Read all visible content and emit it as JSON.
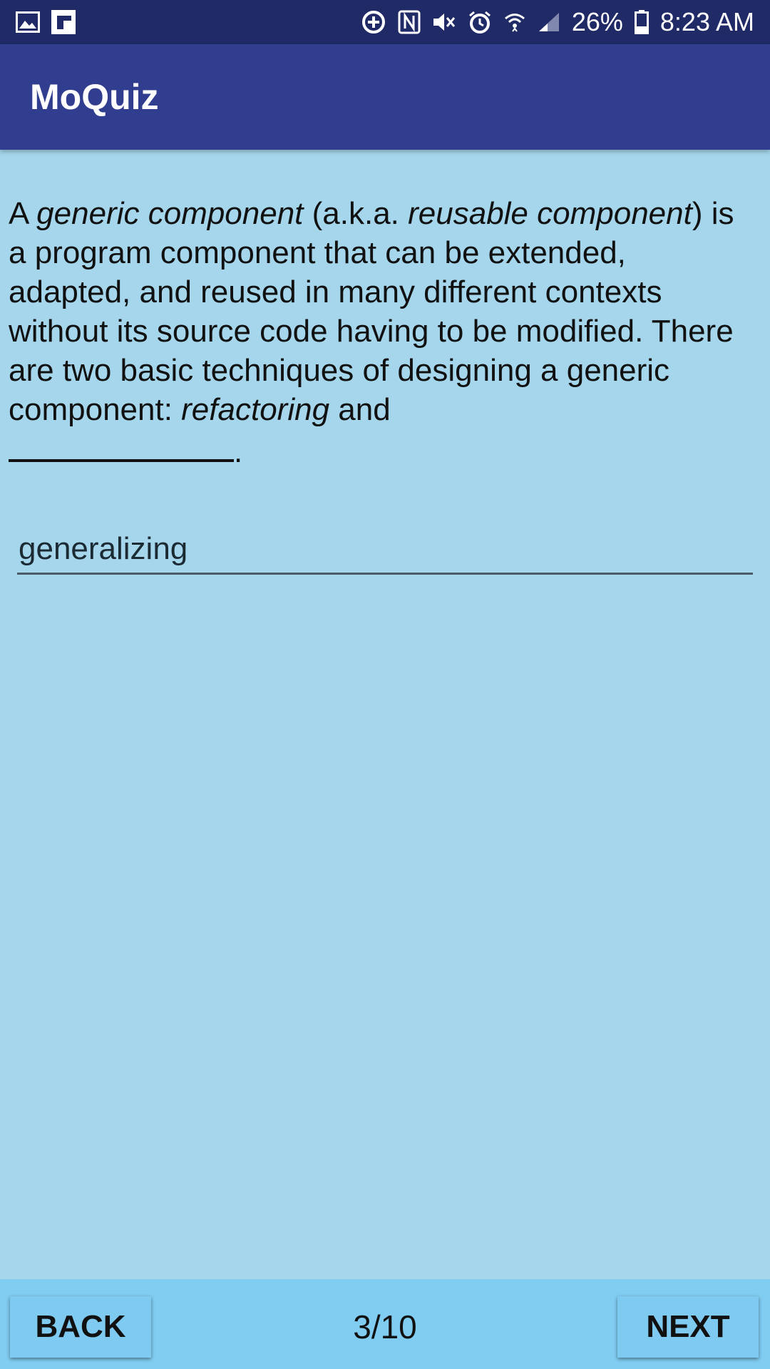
{
  "status_bar": {
    "left_icons": [
      "gallery-icon",
      "flipboard-icon"
    ],
    "right_icons": [
      "data-saver-icon",
      "nfc-icon",
      "mute-icon",
      "alarm-icon",
      "wifi-icon",
      "signal-icon",
      "battery-icon"
    ],
    "battery": "26%",
    "time": "8:23 AM"
  },
  "app_bar": {
    "title": "MoQuiz"
  },
  "question": {
    "part1": "A ",
    "em1": "generic component",
    "part2": " (a.k.a. ",
    "em2": "reusable component",
    "part3": ") is a program component that can be extended, adapted, and reused in many different contexts without its source code having to be modified. There are two basic techniques of designing a generic component: ",
    "em3": "refactoring",
    "part4": " and ",
    "end": "."
  },
  "answer": {
    "value": "generalizing"
  },
  "bottom_bar": {
    "back_label": "BACK",
    "next_label": "NEXT",
    "progress": "3/10"
  },
  "colors": {
    "status_bar": "#1f2a66",
    "app_bar": "#313d8e",
    "background": "#a5d6eb",
    "bottom_bar": "#81cdf2"
  }
}
